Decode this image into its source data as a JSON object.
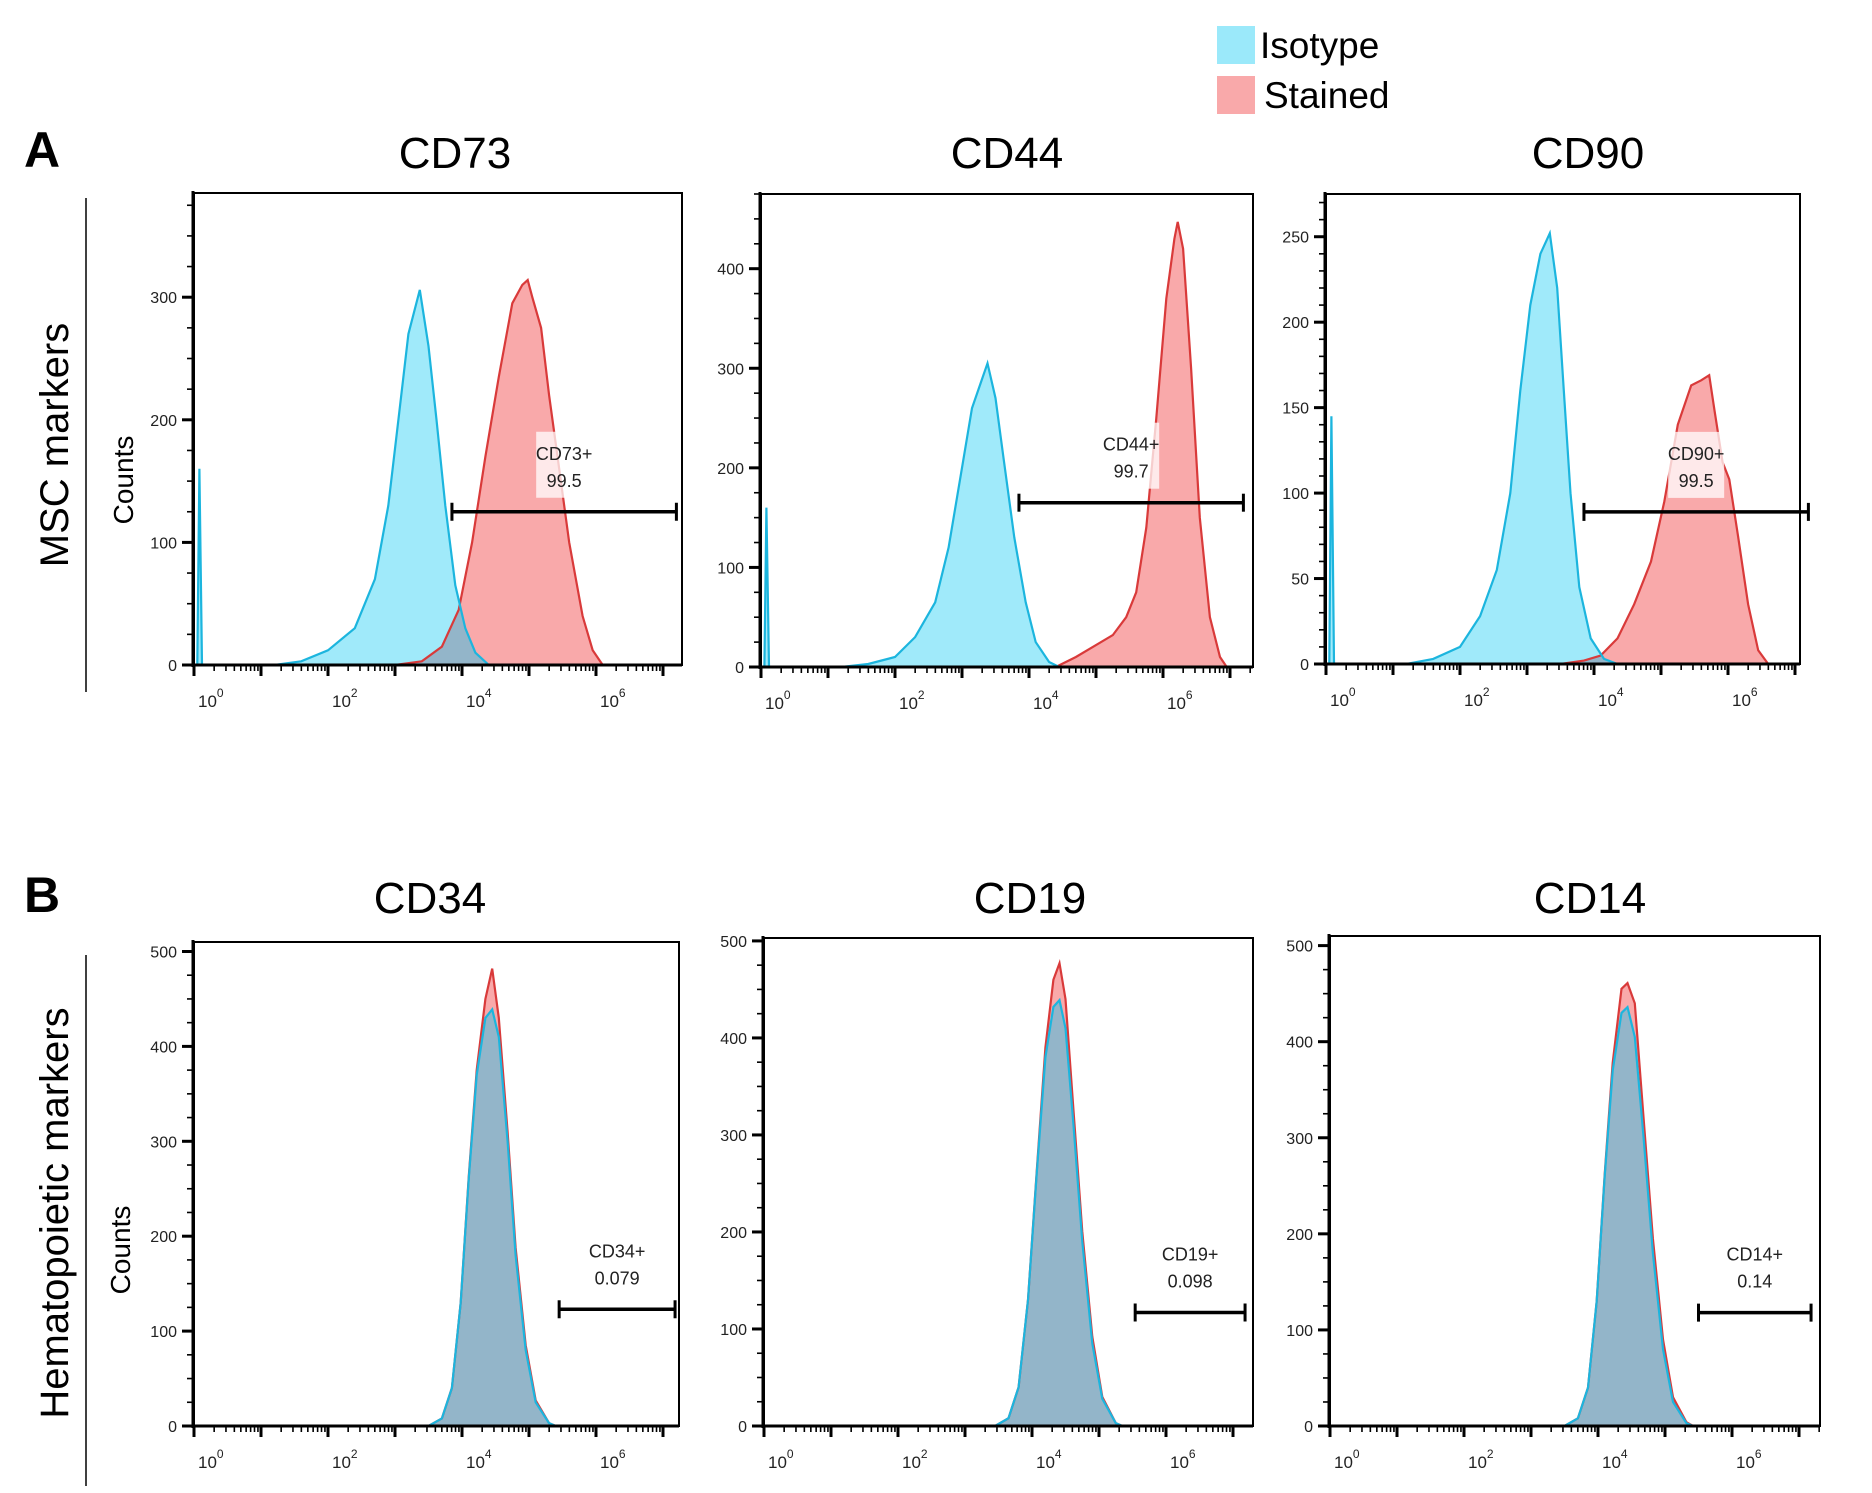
{
  "legend": {
    "items": [
      {
        "label": "Isotype",
        "color": "#9BE9FA"
      },
      {
        "label": "Stained",
        "color": "#F9A9AA"
      }
    ]
  },
  "rows": [
    {
      "letter": "A",
      "label": "MSC markers",
      "ylabel": "Counts"
    },
    {
      "letter": "B",
      "label": "Hematopoietic markers",
      "ylabel": "Counts"
    }
  ],
  "colors": {
    "isotype_fill": "#9BE9FA",
    "isotype_line": "#1CB5DE",
    "stained_fill": "#F9A9AA",
    "stained_line": "#D93A3A",
    "overlap_fill": "#93B5C9",
    "axis": "#000000"
  },
  "chart_data": [
    {
      "type": "area",
      "title": "CD73",
      "row": 0,
      "xlabel": "",
      "ylabel": "Counts",
      "xscale": "log10",
      "xlim_log10": [
        0,
        7.3
      ],
      "xticks_labeled": [
        "10^0",
        "10^2",
        "10^4",
        "10^6"
      ],
      "ylim": [
        0,
        385
      ],
      "yticks": [
        0,
        100,
        200,
        300
      ],
      "ytick_step_minor": 25,
      "gate": {
        "name": "CD73+",
        "value": "99.5",
        "from_log10": 3.85,
        "to_log10": 7.2,
        "y": 125
      },
      "series": [
        {
          "name": "Isotype",
          "points": [
            [
              0.05,
              0
            ],
            [
              0.08,
              160
            ],
            [
              0.12,
              0
            ],
            [
              1.2,
              0
            ],
            [
              1.6,
              3
            ],
            [
              2.0,
              12
            ],
            [
              2.4,
              30
            ],
            [
              2.7,
              70
            ],
            [
              2.9,
              130
            ],
            [
              3.05,
              200
            ],
            [
              3.2,
              270
            ],
            [
              3.37,
              306
            ],
            [
              3.5,
              260
            ],
            [
              3.62,
              200
            ],
            [
              3.75,
              130
            ],
            [
              3.9,
              65
            ],
            [
              4.05,
              30
            ],
            [
              4.2,
              10
            ],
            [
              4.4,
              0
            ]
          ]
        },
        {
          "name": "Stained",
          "points": [
            [
              3.0,
              0
            ],
            [
              3.4,
              3
            ],
            [
              3.7,
              15
            ],
            [
              3.95,
              45
            ],
            [
              4.15,
              100
            ],
            [
              4.35,
              170
            ],
            [
              4.55,
              235
            ],
            [
              4.75,
              295
            ],
            [
              4.9,
              310
            ],
            [
              4.98,
              314
            ],
            [
              5.05,
              300
            ],
            [
              5.18,
              275
            ],
            [
              5.3,
              220
            ],
            [
              5.45,
              160
            ],
            [
              5.6,
              100
            ],
            [
              5.8,
              40
            ],
            [
              5.95,
              12
            ],
            [
              6.1,
              0
            ]
          ]
        }
      ]
    },
    {
      "type": "area",
      "title": "CD44",
      "row": 0,
      "xlabel": "",
      "ylabel": "",
      "xscale": "log10",
      "xlim_log10": [
        0,
        7.3
      ],
      "xticks_labeled": [
        "10^0",
        "10^2",
        "10^4",
        "10^6"
      ],
      "ylim": [
        0,
        475
      ],
      "yticks": [
        0,
        100,
        200,
        300,
        400
      ],
      "ytick_step_minor": 25,
      "gate": {
        "name": "CD44+",
        "value": "99.7",
        "from_log10": 3.85,
        "to_log10": 7.2,
        "y": 165
      },
      "series": [
        {
          "name": "Isotype",
          "points": [
            [
              0.05,
              0
            ],
            [
              0.08,
              160
            ],
            [
              0.12,
              0
            ],
            [
              1.2,
              0
            ],
            [
              1.6,
              3
            ],
            [
              2.0,
              10
            ],
            [
              2.3,
              30
            ],
            [
              2.6,
              65
            ],
            [
              2.8,
              120
            ],
            [
              3.0,
              200
            ],
            [
              3.15,
              260
            ],
            [
              3.38,
              305
            ],
            [
              3.5,
              270
            ],
            [
              3.62,
              210
            ],
            [
              3.78,
              130
            ],
            [
              3.95,
              65
            ],
            [
              4.1,
              25
            ],
            [
              4.3,
              5
            ],
            [
              4.45,
              0
            ]
          ]
        },
        {
          "name": "Stained",
          "points": [
            [
              4.4,
              0
            ],
            [
              4.7,
              10
            ],
            [
              5.0,
              22
            ],
            [
              5.25,
              32
            ],
            [
              5.45,
              50
            ],
            [
              5.6,
              75
            ],
            [
              5.75,
              140
            ],
            [
              5.9,
              250
            ],
            [
              6.05,
              370
            ],
            [
              6.17,
              430
            ],
            [
              6.22,
              447
            ],
            [
              6.3,
              420
            ],
            [
              6.42,
              300
            ],
            [
              6.55,
              150
            ],
            [
              6.7,
              50
            ],
            [
              6.85,
              10
            ],
            [
              6.95,
              0
            ]
          ]
        }
      ]
    },
    {
      "type": "area",
      "title": "CD90",
      "row": 0,
      "xlabel": "",
      "ylabel": "",
      "xscale": "log10",
      "xlim_log10": [
        0,
        7.3
      ],
      "xticks_labeled": [
        "10^0",
        "10^2",
        "10^4",
        "10^6"
      ],
      "ylim": [
        0,
        275
      ],
      "yticks": [
        0,
        50,
        100,
        150,
        200,
        250
      ],
      "ytick_step_minor": 10,
      "gate": {
        "name": "CD90+",
        "value": "99.5",
        "from_log10": 3.85,
        "to_log10": 7.2,
        "y": 89
      },
      "series": [
        {
          "name": "Isotype",
          "points": [
            [
              0.05,
              0
            ],
            [
              0.08,
              145
            ],
            [
              0.12,
              0
            ],
            [
              1.2,
              0
            ],
            [
              1.6,
              3
            ],
            [
              2.0,
              10
            ],
            [
              2.3,
              28
            ],
            [
              2.55,
              55
            ],
            [
              2.75,
              100
            ],
            [
              2.9,
              160
            ],
            [
              3.05,
              210
            ],
            [
              3.2,
              240
            ],
            [
              3.34,
              252
            ],
            [
              3.45,
              220
            ],
            [
              3.55,
              160
            ],
            [
              3.65,
              100
            ],
            [
              3.78,
              45
            ],
            [
              3.95,
              15
            ],
            [
              4.15,
              3
            ],
            [
              4.35,
              0
            ]
          ]
        },
        {
          "name": "Stained",
          "points": [
            [
              3.5,
              0
            ],
            [
              3.85,
              2
            ],
            [
              4.1,
              5
            ],
            [
              4.35,
              15
            ],
            [
              4.6,
              35
            ],
            [
              4.85,
              60
            ],
            [
              5.05,
              95
            ],
            [
              5.25,
              140
            ],
            [
              5.45,
              163
            ],
            [
              5.6,
              166
            ],
            [
              5.72,
              169
            ],
            [
              5.8,
              148
            ],
            [
              5.92,
              118
            ],
            [
              6.02,
              108
            ],
            [
              6.15,
              75
            ],
            [
              6.3,
              35
            ],
            [
              6.45,
              8
            ],
            [
              6.6,
              0
            ]
          ]
        }
      ]
    },
    {
      "type": "area",
      "title": "CD34",
      "row": 1,
      "xlabel": "",
      "ylabel": "Counts",
      "xscale": "log10",
      "xlim_log10": [
        0,
        7.3
      ],
      "xticks_labeled": [
        "10^0",
        "10^2",
        "10^4",
        "10^6"
      ],
      "ylim": [
        0,
        510
      ],
      "yticks": [
        0,
        100,
        200,
        300,
        400,
        500
      ],
      "ytick_step_minor": 25,
      "gate": {
        "name": "CD34+",
        "value": "0.079",
        "from_log10": 5.45,
        "to_log10": 7.18,
        "y": 123
      },
      "series": [
        {
          "name": "Isotype",
          "points": [
            [
              3.5,
              0
            ],
            [
              3.7,
              8
            ],
            [
              3.85,
              40
            ],
            [
              3.98,
              130
            ],
            [
              4.1,
              260
            ],
            [
              4.22,
              370
            ],
            [
              4.35,
              430
            ],
            [
              4.45,
              439
            ],
            [
              4.55,
              410
            ],
            [
              4.68,
              300
            ],
            [
              4.8,
              180
            ],
            [
              4.95,
              80
            ],
            [
              5.1,
              25
            ],
            [
              5.3,
              3
            ],
            [
              5.4,
              0
            ]
          ]
        },
        {
          "name": "Stained",
          "points": [
            [
              3.5,
              0
            ],
            [
              3.7,
              8
            ],
            [
              3.85,
              40
            ],
            [
              3.98,
              130
            ],
            [
              4.1,
              262
            ],
            [
              4.22,
              375
            ],
            [
              4.35,
              450
            ],
            [
              4.45,
              482
            ],
            [
              4.55,
              430
            ],
            [
              4.68,
              310
            ],
            [
              4.8,
              188
            ],
            [
              4.95,
              85
            ],
            [
              5.1,
              27
            ],
            [
              5.3,
              3
            ],
            [
              5.4,
              0
            ]
          ]
        }
      ]
    },
    {
      "type": "area",
      "title": "CD19",
      "row": 1,
      "xlabel": "",
      "ylabel": "",
      "xscale": "log10",
      "xlim_log10": [
        0,
        7.3
      ],
      "xticks_labeled": [
        "10^0",
        "10^2",
        "10^4",
        "10^6"
      ],
      "ylim": [
        0,
        503
      ],
      "yticks": [
        0,
        100,
        200,
        300,
        400,
        500
      ],
      "ytick_step_minor": 25,
      "gate": {
        "name": "CD19+",
        "value": "0.098",
        "from_log10": 5.54,
        "to_log10": 7.18,
        "y": 117
      },
      "series": [
        {
          "name": "Isotype",
          "points": [
            [
              3.45,
              0
            ],
            [
              3.65,
              8
            ],
            [
              3.8,
              40
            ],
            [
              3.94,
              130
            ],
            [
              4.07,
              260
            ],
            [
              4.2,
              380
            ],
            [
              4.32,
              432
            ],
            [
              4.41,
              439
            ],
            [
              4.5,
              410
            ],
            [
              4.62,
              310
            ],
            [
              4.75,
              190
            ],
            [
              4.9,
              85
            ],
            [
              5.05,
              28
            ],
            [
              5.25,
              3
            ],
            [
              5.35,
              0
            ]
          ]
        },
        {
          "name": "Stained",
          "points": [
            [
              3.45,
              0
            ],
            [
              3.65,
              8
            ],
            [
              3.8,
              40
            ],
            [
              3.94,
              130
            ],
            [
              4.07,
              262
            ],
            [
              4.2,
              390
            ],
            [
              4.32,
              460
            ],
            [
              4.41,
              477
            ],
            [
              4.5,
              440
            ],
            [
              4.62,
              325
            ],
            [
              4.75,
              200
            ],
            [
              4.9,
              92
            ],
            [
              5.05,
              30
            ],
            [
              5.25,
              3
            ],
            [
              5.35,
              0
            ]
          ]
        }
      ]
    },
    {
      "type": "area",
      "title": "CD14",
      "row": 1,
      "xlabel": "",
      "ylabel": "",
      "xscale": "log10",
      "xlim_log10": [
        0,
        7.3
      ],
      "xticks_labeled": [
        "10^0",
        "10^2",
        "10^4",
        "10^6"
      ],
      "ylim": [
        0,
        510
      ],
      "yticks": [
        0,
        100,
        200,
        300,
        400,
        500
      ],
      "ytick_step_minor": 25,
      "gate": {
        "name": "CD14+",
        "value": "0.14",
        "from_log10": 5.5,
        "to_log10": 7.18,
        "y": 118
      },
      "series": [
        {
          "name": "Isotype",
          "points": [
            [
              3.5,
              0
            ],
            [
              3.7,
              8
            ],
            [
              3.85,
              40
            ],
            [
              3.98,
              130
            ],
            [
              4.1,
              260
            ],
            [
              4.22,
              370
            ],
            [
              4.35,
              430
            ],
            [
              4.44,
              436
            ],
            [
              4.55,
              405
            ],
            [
              4.68,
              300
            ],
            [
              4.82,
              180
            ],
            [
              4.97,
              80
            ],
            [
              5.12,
              25
            ],
            [
              5.32,
              3
            ],
            [
              5.42,
              0
            ]
          ]
        },
        {
          "name": "Stained",
          "points": [
            [
              3.5,
              0
            ],
            [
              3.7,
              8
            ],
            [
              3.85,
              40
            ],
            [
              3.98,
              130
            ],
            [
              4.1,
              262
            ],
            [
              4.22,
              378
            ],
            [
              4.35,
              455
            ],
            [
              4.44,
              461
            ],
            [
              4.55,
              440
            ],
            [
              4.68,
              320
            ],
            [
              4.82,
              195
            ],
            [
              4.97,
              90
            ],
            [
              5.12,
              30
            ],
            [
              5.32,
              4
            ],
            [
              5.42,
              0
            ]
          ]
        }
      ]
    }
  ]
}
